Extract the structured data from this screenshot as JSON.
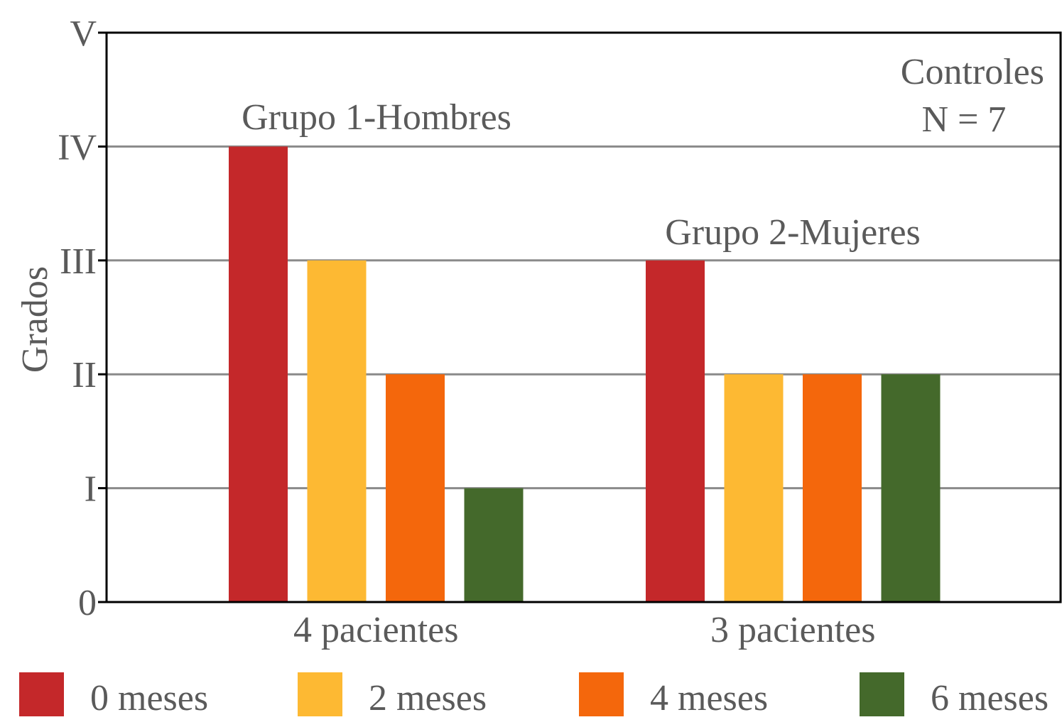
{
  "chart_data": {
    "type": "bar",
    "title": "",
    "xlabel": "",
    "ylabel": "Grados",
    "ylim": [
      0,
      5
    ],
    "yticks": [
      {
        "value": 0,
        "label": "0"
      },
      {
        "value": 1,
        "label": "I"
      },
      {
        "value": 2,
        "label": "II"
      },
      {
        "value": 3,
        "label": "III"
      },
      {
        "value": 4,
        "label": "IV"
      },
      {
        "value": 5,
        "label": "V"
      }
    ],
    "grid": true,
    "categories": [
      "4 pacientes",
      "3 pacientes"
    ],
    "group_titles": [
      "Grupo 1-Hombres",
      "Grupo 2-Mujeres"
    ],
    "series": [
      {
        "name": "0 meses",
        "color": "#c4282a",
        "values": [
          4,
          3
        ]
      },
      {
        "name": "2 meses",
        "color": "#fdb933",
        "values": [
          3,
          2
        ]
      },
      {
        "name": "4 meses",
        "color": "#f4670c",
        "values": [
          2,
          2
        ]
      },
      {
        "name": "6 meses",
        "color": "#44692b",
        "values": [
          1,
          2
        ]
      }
    ],
    "annotation": {
      "line1": "Controles",
      "line2": "N = 7"
    },
    "legend_position": "bottom"
  }
}
